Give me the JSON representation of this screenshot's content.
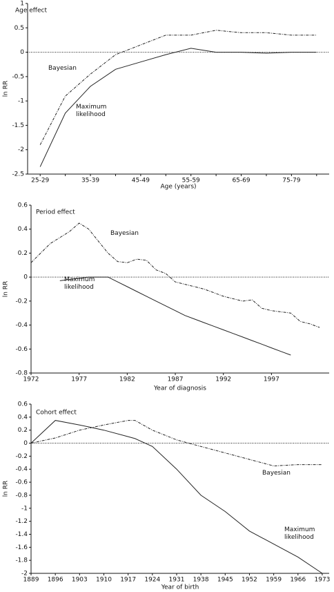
{
  "chart_data": [
    {
      "type": "line",
      "title": "Age effect",
      "xlabel": "Age (years)",
      "ylabel": "ln RR",
      "categories": [
        "25-29",
        null,
        "35-39",
        null,
        "45-49",
        null,
        "55-59",
        null,
        "65-69",
        null,
        "75-79",
        null
      ],
      "series": [
        {
          "name": "Bayesian",
          "color": "#222222",
          "style": "dashed",
          "values": [
            -1.9,
            -0.9,
            -0.45,
            -0.05,
            0.15,
            0.35,
            0.35,
            0.45,
            0.4,
            0.4,
            0.35,
            0.35
          ]
        },
        {
          "name": "Maximum likelihood",
          "color": "#222222",
          "style": "solid",
          "values": [
            -2.35,
            -1.25,
            -0.7,
            -0.35,
            -0.2,
            -0.05,
            0.08,
            0.0,
            0.0,
            -0.02,
            0.0,
            0.0
          ]
        }
      ],
      "ylim": [
        -2.5,
        1
      ],
      "yticks": [
        1,
        0.5,
        0,
        -0.5,
        -1,
        -1.5,
        -2,
        -2.5
      ]
    },
    {
      "type": "line",
      "title": "Period effect",
      "xlabel": "Year of diagnosis",
      "ylabel": "ln RR",
      "x": [
        1972,
        1973,
        1974,
        1975,
        1976,
        1977,
        1978,
        1979,
        1980,
        1981,
        1982,
        1983,
        1984,
        1985,
        1986,
        1987,
        1988,
        1989,
        1990,
        1991,
        1992,
        1993,
        1994,
        1995,
        1996,
        1997,
        1998,
        1999,
        2000,
        2001,
        2002
      ],
      "series": [
        {
          "name": "Bayesian",
          "color": "#222222",
          "style": "dashed",
          "values": [
            0.12,
            0.2,
            0.28,
            0.33,
            0.38,
            0.45,
            0.4,
            0.3,
            0.2,
            0.13,
            0.12,
            0.15,
            0.14,
            0.06,
            0.03,
            -0.04,
            -0.06,
            -0.08,
            -0.1,
            -0.13,
            -0.16,
            -0.18,
            -0.2,
            -0.19,
            -0.26,
            -0.28,
            -0.29,
            -0.3,
            -0.37,
            -0.39,
            -0.42
          ]
        },
        {
          "name": "Maximum likelihood",
          "color": "#222222",
          "style": "solid",
          "values": [
            null,
            null,
            null,
            -0.03,
            -0.02,
            -0.01,
            0,
            0,
            0,
            -0.04,
            -0.08,
            -0.12,
            -0.16,
            -0.2,
            -0.24,
            -0.28,
            -0.32,
            -0.35,
            -0.38,
            -0.41,
            -0.44,
            -0.47,
            -0.5,
            -0.53,
            -0.56,
            -0.59,
            -0.62,
            -0.65,
            null,
            null,
            null
          ]
        }
      ],
      "xlim": [
        1972,
        2003
      ],
      "xticks": [
        1972,
        1977,
        1982,
        1987,
        1992,
        1997
      ],
      "ylim": [
        -0.8,
        0.6
      ],
      "yticks": [
        0.6,
        0.4,
        0.2,
        0,
        -0.2,
        -0.4,
        -0.6,
        -0.8
      ]
    },
    {
      "type": "line",
      "title": "Cohort effect",
      "xlabel": "Year of birth",
      "ylabel": "ln RR",
      "x": [
        1889,
        1896,
        1903,
        1910,
        1917,
        1919,
        1924,
        1931,
        1938,
        1945,
        1952,
        1959,
        1966,
        1973
      ],
      "series": [
        {
          "name": "Bayesian",
          "color": "#222222",
          "style": "dashed",
          "values": [
            0,
            0.08,
            0.2,
            0.28,
            0.35,
            0.35,
            0.2,
            0.05,
            -0.05,
            -0.15,
            -0.25,
            -0.35,
            -0.33,
            -0.33
          ]
        },
        {
          "name": "Maximum likelihood",
          "color": "#222222",
          "style": "solid",
          "values": [
            0,
            0.35,
            0.28,
            0.2,
            0.1,
            0.07,
            -0.05,
            -0.4,
            -0.8,
            -1.05,
            -1.35,
            -1.55,
            -1.75,
            -2.0
          ]
        }
      ],
      "xlim": [
        1889,
        1975
      ],
      "xticks": [
        1889,
        1896,
        1903,
        1910,
        1917,
        1924,
        1931,
        1938,
        1945,
        1952,
        1959,
        1966,
        1973
      ],
      "ylim": [
        -2,
        0.6
      ],
      "yticks": [
        0.6,
        0.4,
        0.2,
        0,
        -0.2,
        -0.4,
        -0.6,
        -0.8,
        -1,
        -1.2,
        -1.4,
        -1.6,
        -1.8,
        -2
      ]
    }
  ]
}
